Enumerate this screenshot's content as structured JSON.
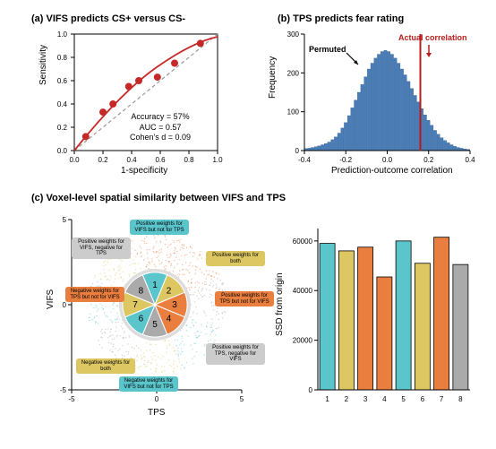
{
  "panel_a": {
    "title": "(a) VIFS predicts CS+ versus CS-",
    "xlabel": "1-specificity",
    "ylabel": "Sensitivity",
    "xlim": [
      0,
      1
    ],
    "ylim": [
      0,
      1
    ],
    "xtick_step": 0.2,
    "ytick_step": 0.2,
    "marker_color": "#c62828",
    "line_color": "#c62828",
    "diag_color": "#999999",
    "background": "#ffffff",
    "points": [
      {
        "x": 0.08,
        "y": 0.12
      },
      {
        "x": 0.2,
        "y": 0.33
      },
      {
        "x": 0.27,
        "y": 0.4
      },
      {
        "x": 0.38,
        "y": 0.55
      },
      {
        "x": 0.45,
        "y": 0.6
      },
      {
        "x": 0.58,
        "y": 0.63
      },
      {
        "x": 0.7,
        "y": 0.75
      },
      {
        "x": 0.88,
        "y": 0.92
      }
    ],
    "stats": [
      "Accuracy = 57%",
      "AUC = 0.57",
      "Cohen's d = 0.09"
    ]
  },
  "panel_b": {
    "title": "(b) TPS predicts fear rating",
    "xlabel": "Prediction-outcome correlation",
    "ylabel": "Frequency",
    "xlim": [
      -0.4,
      0.4
    ],
    "ylim": [
      0,
      300
    ],
    "xtick_step": 0.2,
    "ytick_step": 100,
    "bar_color": "#4a7db8",
    "actual_color": "#b71c1c",
    "actual_value": 0.16,
    "permuted_label": "Permuted",
    "actual_label": "Actual correlation",
    "hist_bins": [
      5,
      6,
      8,
      10,
      12,
      15,
      18,
      22,
      28,
      35,
      45,
      58,
      72,
      90,
      110,
      130,
      150,
      170,
      190,
      210,
      225,
      238,
      248,
      255,
      258,
      255,
      248,
      238,
      225,
      210,
      195,
      178,
      160,
      142,
      125,
      108,
      92,
      78,
      65,
      52,
      42,
      33,
      26,
      20,
      15,
      11,
      8,
      6,
      4,
      3
    ],
    "bin_start": -0.4,
    "bin_end": 0.4
  },
  "panel_c": {
    "title": "(c) Voxel-level spatial similarity between VIFS and TPS",
    "scatter": {
      "xlabel": "TPS",
      "ylabel": "VIFS",
      "xlim": [
        -5,
        5
      ],
      "ylim": [
        -5,
        5
      ],
      "tick_step": 5,
      "octant_colors": [
        "#5bc5cc",
        "#ddc763",
        "#e97e3f",
        "#e97e3f",
        "#aaaaaa",
        "#5bc5cc",
        "#ddc763",
        "#aaaaaa"
      ],
      "octant_labels": {
        "top": "Positive weights for VIFS but not for TPS",
        "tr": "Positive weights for both",
        "right": "Positive weights for TPS but not for VIFS",
        "br": "Positive weights for TPS, negative for VIFS",
        "bottom": "Negative weights for VIFS but not for TPS",
        "bl": "Negative weights for both",
        "left": "Negative weights for TPS but not for VIFS",
        "tl": "Positive weights for VIFS, negative for TPS"
      },
      "label_bg": {
        "top": "#5bc5cc",
        "tr": "#ddc763",
        "right": "#e97e3f",
        "br": "#cccccc",
        "bottom": "#5bc5cc",
        "bl": "#ddc763",
        "left": "#e97e3f",
        "tl": "#cccccc"
      }
    },
    "bar": {
      "xlabel": "",
      "ylabel": "SSD from origin",
      "ylim": [
        0,
        60000
      ],
      "ytick_step": 20000,
      "categories": [
        1,
        2,
        3,
        4,
        5,
        6,
        7,
        8
      ],
      "values": [
        59000,
        56000,
        57500,
        45500,
        60000,
        51000,
        61500,
        50500
      ],
      "colors": [
        "#5bc5cc",
        "#ddc763",
        "#e97e3f",
        "#e97e3f",
        "#5bc5cc",
        "#ddc763",
        "#e97e3f",
        "#aaaaaa"
      ],
      "bar_border": "#000000"
    }
  }
}
